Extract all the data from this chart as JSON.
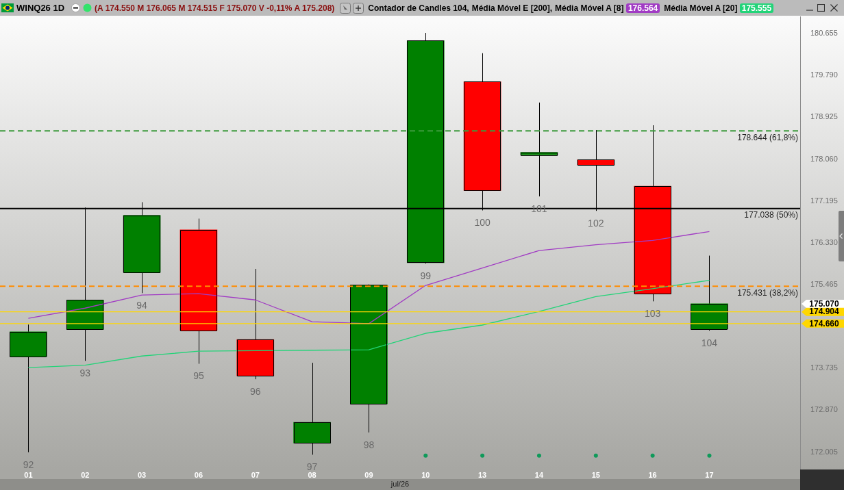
{
  "chart_data": {
    "type": "candlestick",
    "title": "WINQ26 1D",
    "subtitle": "(A 174.550 M 176.065 M 174.515 F 175.070 V -0,11% A 175.208)",
    "xlabel": "jul/26",
    "categories": [
      "01",
      "02",
      "03",
      "06",
      "07",
      "08",
      "09",
      "10",
      "13",
      "14",
      "15",
      "16",
      "17"
    ],
    "ohlc": [
      [
        173980,
        174640,
        172000,
        174490
      ],
      [
        174540,
        177060,
        173890,
        175150
      ],
      [
        175720,
        177170,
        175290,
        176900
      ],
      [
        176600,
        176830,
        173830,
        174520
      ],
      [
        174330,
        175790,
        173510,
        173580
      ],
      [
        172190,
        173850,
        171950,
        172620
      ],
      [
        173000,
        175470,
        172410,
        175460
      ],
      [
        175920,
        180670,
        175900,
        180510
      ],
      [
        179660,
        180250,
        177000,
        177410
      ],
      [
        178150,
        179230,
        177290,
        178200
      ],
      [
        178050,
        178660,
        176990,
        177940
      ],
      [
        177500,
        178760,
        175120,
        175280
      ],
      [
        174550,
        176065,
        174515,
        175070
      ]
    ],
    "colors": [
      "#008000",
      "#008000",
      "#008000",
      "#ff0000",
      "#ff0000",
      "#008000",
      "#008000",
      "#008000",
      "#ff0000",
      "#008000",
      "#ff0000",
      "#ff0000",
      "#008000"
    ],
    "value_labels": [
      "92",
      "93",
      "94",
      "95",
      "96",
      "97",
      "98",
      "99",
      "100",
      "101",
      "102",
      "103",
      "104"
    ],
    "series": [
      {
        "name": "Média Móvel A [8]",
        "type": "line",
        "color": "#a13cc4",
        "values": [
          174770,
          174980,
          175250,
          175280,
          175150,
          174700,
          174660,
          175450,
          175810,
          176170,
          176290,
          176380,
          176564
        ]
      },
      {
        "name": "Média Móvel A [20]",
        "type": "line",
        "color": "#22d478",
        "values": [
          173750,
          173800,
          173990,
          174090,
          174100,
          174110,
          174120,
          174460,
          174630,
          174910,
          175220,
          175380,
          175555
        ]
      },
      {
        "type": "scatter",
        "color": "#0f9a5a",
        "marker": "circle",
        "values": [
          null,
          null,
          null,
          null,
          null,
          null,
          null,
          171930,
          171930,
          171930,
          171930,
          171930,
          171930
        ]
      }
    ],
    "marker": "none",
    "ylim": [
      171645,
      181010
    ],
    "yticks": [
      {
        "value": 180655,
        "label": "180.655"
      },
      {
        "value": 179790,
        "label": "179.790"
      },
      {
        "value": 178925,
        "label": "178.925"
      },
      {
        "value": 178060,
        "label": "178.060"
      },
      {
        "value": 177195,
        "label": "177.195"
      },
      {
        "value": 176330,
        "label": "176.330"
      },
      {
        "value": 175465,
        "label": "175.465"
      },
      {
        "value": 173735,
        "label": "173.735"
      },
      {
        "value": 172870,
        "label": "172.870"
      },
      {
        "value": 172005,
        "label": "172.005"
      }
    ],
    "ref_lines": [
      {
        "axis": "y",
        "value": 178644,
        "label": "178.644 (61,8%)",
        "color": "#3c9a3c",
        "line_style": "dashed"
      },
      {
        "axis": "y",
        "value": 177038,
        "label": "177.038 (50%)",
        "color": "#000000"
      },
      {
        "axis": "y",
        "value": 175431,
        "label": "175.431 (38,2%)",
        "color": "#ff8c00",
        "line_style": "dashed"
      },
      {
        "axis": "y",
        "value": 174904,
        "color": "#ffd700"
      },
      {
        "axis": "y",
        "value": 174660,
        "color": "#ffd700"
      }
    ],
    "annotations": [
      "Contador de Candles 104,",
      "Média Móvel E [200],",
      "176.564",
      "175.555",
      "174.904",
      "174.660",
      "175.070"
    ],
    "legend": "top"
  }
}
